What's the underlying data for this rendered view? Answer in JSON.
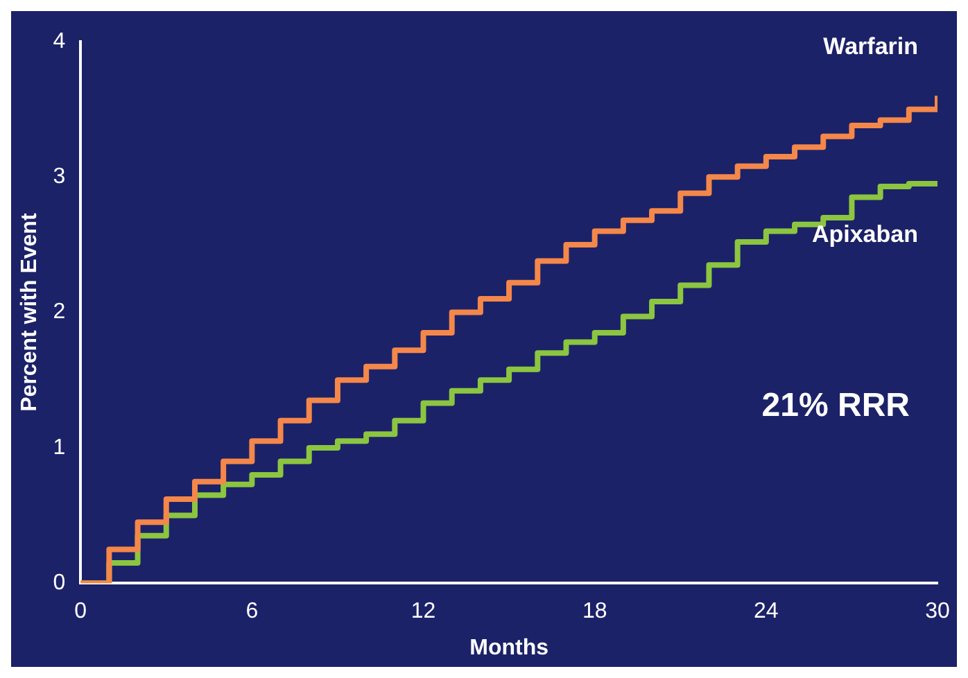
{
  "chart_data": {
    "type": "step",
    "xlabel": "Months",
    "ylabel": "Percent with Event",
    "x": [
      0,
      1,
      2,
      3,
      4,
      5,
      6,
      7,
      8,
      9,
      10,
      11,
      12,
      13,
      14,
      15,
      16,
      17,
      18,
      19,
      20,
      21,
      22,
      23,
      24,
      25,
      26,
      27,
      28,
      29,
      30
    ],
    "series": [
      {
        "name": "Warfarin",
        "color": "#f4874a",
        "values": [
          0,
          0.25,
          0.45,
          0.62,
          0.75,
          0.9,
          1.05,
          1.2,
          1.35,
          1.5,
          1.6,
          1.72,
          1.85,
          2.0,
          2.1,
          2.22,
          2.38,
          2.5,
          2.6,
          2.68,
          2.75,
          2.88,
          3.0,
          3.08,
          3.15,
          3.22,
          3.3,
          3.38,
          3.42,
          3.5,
          3.6
        ]
      },
      {
        "name": "Apixaban",
        "color": "#8cc540",
        "values": [
          0,
          0.15,
          0.35,
          0.5,
          0.65,
          0.73,
          0.8,
          0.9,
          1.0,
          1.05,
          1.1,
          1.2,
          1.33,
          1.42,
          1.5,
          1.58,
          1.7,
          1.78,
          1.85,
          1.97,
          2.08,
          2.2,
          2.35,
          2.52,
          2.6,
          2.65,
          2.7,
          2.85,
          2.93,
          2.95,
          2.95
        ]
      }
    ],
    "xlim": [
      0,
      30
    ],
    "xticks": [
      0,
      6,
      12,
      18,
      24,
      30
    ],
    "ylim": [
      0,
      4
    ],
    "yticks": [
      0,
      1,
      2,
      3,
      4
    ],
    "grid": false,
    "legend": false,
    "marker": "none",
    "line_style": "solid",
    "annotations": [
      "21% RRR"
    ]
  }
}
